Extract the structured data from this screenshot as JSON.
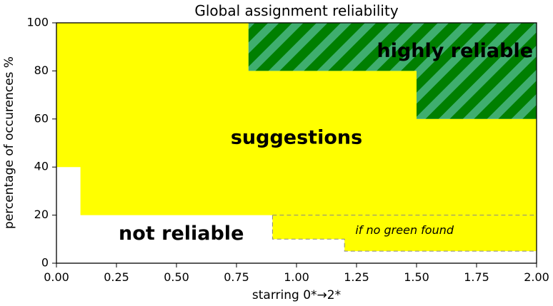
{
  "chart_data": {
    "type": "area",
    "title": "Global assignment reliability",
    "xlabel": "starring  0*→2*",
    "ylabel": "percentage of occurences %",
    "xlim": [
      0,
      2
    ],
    "ylim": [
      0,
      100
    ],
    "xticks": [
      {
        "value": 0,
        "label": "0.00"
      },
      {
        "value": 0.25,
        "label": "0.25"
      },
      {
        "value": 0.5,
        "label": "0.50"
      },
      {
        "value": 0.75,
        "label": "0.75"
      },
      {
        "value": 1.0,
        "label": "1.00"
      },
      {
        "value": 1.25,
        "label": "1.25"
      },
      {
        "value": 1.5,
        "label": "1.50"
      },
      {
        "value": 1.75,
        "label": "1.75"
      },
      {
        "value": 2.0,
        "label": "2.00"
      }
    ],
    "yticks": [
      {
        "value": 0,
        "label": "0"
      },
      {
        "value": 20,
        "label": "20"
      },
      {
        "value": 40,
        "label": "40"
      },
      {
        "value": 60,
        "label": "60"
      },
      {
        "value": 80,
        "label": "80"
      },
      {
        "value": 100,
        "label": "100"
      }
    ],
    "colors": {
      "suggestions": "#ffff00",
      "highly_reliable_base": "#007f00",
      "highly_reliable_stripe": "#3fae6f",
      "optional": "#ffff00",
      "dashed_boundary": "#888888",
      "axes": "#000000"
    },
    "regions": [
      {
        "name": "suggestions",
        "label": "suggestions",
        "label_at": [
          1.0,
          52
        ],
        "label_style": "big",
        "polygon": [
          [
            0,
            40
          ],
          [
            0,
            100
          ],
          [
            0.8,
            100
          ],
          [
            0.8,
            80
          ],
          [
            1.5,
            80
          ],
          [
            1.5,
            60
          ],
          [
            2.0,
            60
          ],
          [
            2.0,
            20
          ],
          [
            0.1,
            20
          ],
          [
            0.1,
            40
          ]
        ]
      },
      {
        "name": "highly_reliable",
        "label": "highly reliable",
        "label_at": [
          1.66,
          88
        ],
        "label_style": "big",
        "polygon": [
          [
            0.8,
            100
          ],
          [
            2.0,
            100
          ],
          [
            2.0,
            60
          ],
          [
            1.5,
            60
          ],
          [
            1.5,
            80
          ],
          [
            0.8,
            80
          ]
        ]
      },
      {
        "name": "optional",
        "label": "if no green found",
        "label_at": [
          1.45,
          13.5
        ],
        "label_style": "small",
        "polygon": [
          [
            0.9,
            20
          ],
          [
            2.0,
            20
          ],
          [
            2.0,
            5
          ],
          [
            1.2,
            5
          ],
          [
            1.2,
            10
          ],
          [
            0.9,
            10
          ]
        ]
      },
      {
        "name": "not_reliable",
        "label": "not reliable",
        "label_at": [
          0.52,
          12
        ],
        "label_style": "big",
        "polygon": [
          [
            0,
            0
          ],
          [
            0,
            40
          ],
          [
            0.1,
            40
          ],
          [
            0.1,
            20
          ],
          [
            0.9,
            20
          ],
          [
            0.9,
            10
          ],
          [
            1.2,
            10
          ],
          [
            1.2,
            5
          ],
          [
            2.0,
            5
          ],
          [
            2.0,
            0
          ]
        ]
      }
    ],
    "dashed_boundaries": [
      [
        [
          0.9,
          20
        ],
        [
          2.0,
          20
        ]
      ],
      [
        [
          0.9,
          20
        ],
        [
          0.9,
          10
        ],
        [
          1.2,
          10
        ],
        [
          1.2,
          5
        ],
        [
          2.0,
          5
        ]
      ]
    ]
  }
}
